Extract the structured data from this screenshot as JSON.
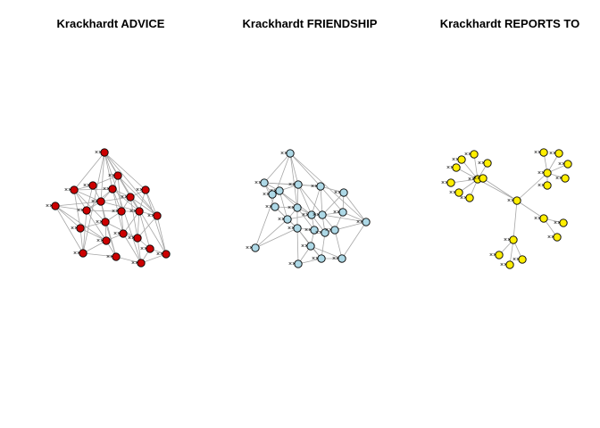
{
  "panels": [
    {
      "id": "advice",
      "title": "Krackhardt ADVICE",
      "node_color": "#cc0000",
      "edge_color": "#a6a6a6"
    },
    {
      "id": "friendship",
      "title": "Krackhardt FRIENDSHIP",
      "node_color": "#add8e6",
      "edge_color": "#a6a6a6"
    },
    {
      "id": "reports",
      "title": "Krackhardt REPORTS TO",
      "node_color": "#ffee00",
      "edge_color": "#a6a6a6"
    }
  ]
}
